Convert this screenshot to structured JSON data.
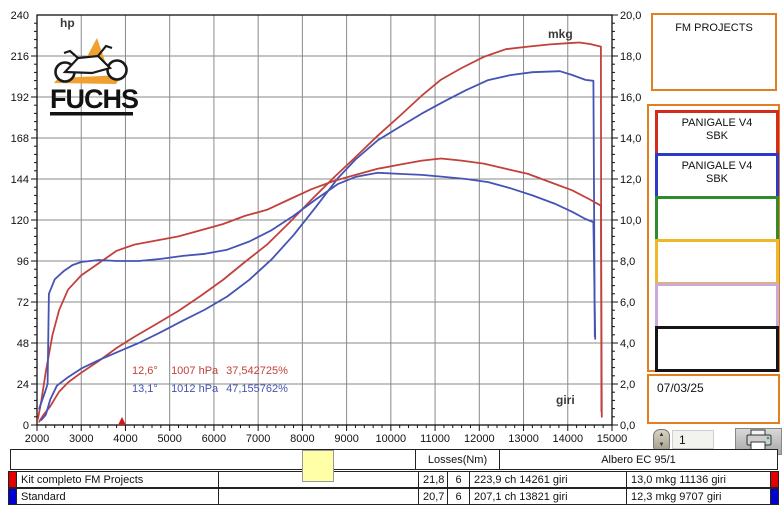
{
  "branding": {
    "logo_text": "FUCHS"
  },
  "colors": {
    "accent_orange": "#e08020",
    "logo_orange": "#f0a030",
    "curve_red": "#c2413c",
    "curve_blue": "#4553b4"
  },
  "chart": {
    "hp_label": "hp",
    "mkg_label": "mkg",
    "giri_label": "giri",
    "annotations": [
      {
        "temp": "12,6°",
        "pressure": "1007 hPa",
        "humidity": "37,542725%"
      },
      {
        "temp": "13,1°",
        "pressure": "1012 hPa",
        "humidity": "47,155762%"
      }
    ]
  },
  "chart_data": {
    "type": "line",
    "title": "",
    "xlabel": "giri",
    "ylabel_left": "hp",
    "ylabel_right": "mkg",
    "x_range": [
      2000,
      15000
    ],
    "y_left_range": [
      0,
      240
    ],
    "y_right_range": [
      0,
      20
    ],
    "grid": true,
    "x_tick_values": [
      2000,
      3000,
      4000,
      5000,
      6000,
      7000,
      8000,
      9000,
      10000,
      11000,
      12000,
      13000,
      14000,
      15000
    ],
    "x_tick_labels": [
      "2000",
      "3000",
      "4000",
      "5000",
      "6000",
      "7000",
      "8000",
      "9000",
      "10000",
      "11000",
      "12000",
      "13000",
      "14000",
      "15000"
    ],
    "y_left_tick_values": [
      0,
      24,
      48,
      72,
      96,
      120,
      144,
      168,
      192,
      216,
      240
    ],
    "y_left_tick_labels": [
      "0",
      "24",
      "48",
      "72",
      "96",
      "120",
      "144",
      "168",
      "192",
      "216",
      "240"
    ],
    "y_right_tick_values": [
      0,
      2,
      4,
      6,
      8,
      10,
      12,
      14,
      16,
      18,
      20
    ],
    "y_right_tick_labels": [
      "0,0",
      "2,0",
      "4,0",
      "6,0",
      "8,0",
      "10,0",
      "12,0",
      "14,0",
      "16,0",
      "18,0",
      "20,0"
    ],
    "series": [
      {
        "name": "Kit completo FM Projects - potenza (ch)",
        "axis": "left",
        "color": "#c2413c",
        "peak": "223,9 ch 14261 giri",
        "points": [
          [
            2050,
            2
          ],
          [
            2150,
            6
          ],
          [
            2300,
            11
          ],
          [
            2500,
            19.5
          ],
          [
            2700,
            24.9
          ],
          [
            3000,
            30.6
          ],
          [
            3400,
            37.5
          ],
          [
            3800,
            45.1
          ],
          [
            4200,
            51.6
          ],
          [
            4700,
            59.1
          ],
          [
            5200,
            66.8
          ],
          [
            5700,
            75.6
          ],
          [
            6200,
            84.9
          ],
          [
            6700,
            95.4
          ],
          [
            7200,
            105.6
          ],
          [
            7700,
            118.3
          ],
          [
            8200,
            131.7
          ],
          [
            8700,
            144.6
          ],
          [
            9200,
            156.8
          ],
          [
            9700,
            169.3
          ],
          [
            10200,
            180.9
          ],
          [
            10700,
            192.8
          ],
          [
            11136,
            202.2
          ],
          [
            11600,
            209
          ],
          [
            12100,
            215.5
          ],
          [
            12600,
            220
          ],
          [
            13100,
            221.5
          ],
          [
            13600,
            222.8
          ],
          [
            14000,
            223.5
          ],
          [
            14261,
            223.9
          ],
          [
            14500,
            223
          ],
          [
            14750,
            221.5
          ],
          [
            14760,
            8
          ]
        ]
      },
      {
        "name": "Standard - potenza (ch)",
        "axis": "left",
        "color": "#4553b4",
        "peak": "207,1 ch 13821 giri",
        "points": [
          [
            2100,
            3
          ],
          [
            2200,
            6
          ],
          [
            2300,
            15
          ],
          [
            2450,
            23
          ],
          [
            2700,
            28
          ],
          [
            3000,
            33
          ],
          [
            3400,
            38
          ],
          [
            3800,
            42.5
          ],
          [
            4300,
            48
          ],
          [
            4800,
            54.3
          ],
          [
            5300,
            61.1
          ],
          [
            5800,
            67.6
          ],
          [
            6300,
            75.2
          ],
          [
            6800,
            85
          ],
          [
            7300,
            96.8
          ],
          [
            7800,
            111.1
          ],
          [
            8300,
            127.5
          ],
          [
            8800,
            144.4
          ],
          [
            9200,
            155.4
          ],
          [
            9700,
            166.6
          ],
          [
            10200,
            174.5
          ],
          [
            10700,
            182.3
          ],
          [
            11200,
            189.3
          ],
          [
            11700,
            196
          ],
          [
            12200,
            201.9
          ],
          [
            12700,
            204.8
          ],
          [
            13200,
            206.5
          ],
          [
            13821,
            207.1
          ],
          [
            14100,
            204.9
          ],
          [
            14400,
            202
          ],
          [
            14580,
            201.5
          ],
          [
            14610,
            52
          ]
        ]
      },
      {
        "name": "Kit completo FM Projects - coppia (mkg)",
        "axis": "right",
        "color": "#c2413c",
        "peak": "13,0 mkg 11136 giri",
        "points": [
          [
            2020,
            0.3
          ],
          [
            2100,
            1.2
          ],
          [
            2200,
            2.6
          ],
          [
            2350,
            4.4
          ],
          [
            2500,
            5.6
          ],
          [
            2700,
            6.6
          ],
          [
            3000,
            7.3
          ],
          [
            3400,
            7.9
          ],
          [
            3800,
            8.5
          ],
          [
            4200,
            8.8
          ],
          [
            4700,
            9.0
          ],
          [
            5200,
            9.2
          ],
          [
            5700,
            9.5
          ],
          [
            6200,
            9.8
          ],
          [
            6700,
            10.2
          ],
          [
            7200,
            10.5
          ],
          [
            7700,
            11.0
          ],
          [
            8200,
            11.5
          ],
          [
            8700,
            11.9
          ],
          [
            9200,
            12.2
          ],
          [
            9700,
            12.5
          ],
          [
            10200,
            12.7
          ],
          [
            10700,
            12.9
          ],
          [
            11136,
            13.0
          ],
          [
            11600,
            12.9
          ],
          [
            12100,
            12.75
          ],
          [
            12600,
            12.5
          ],
          [
            13100,
            12.25
          ],
          [
            13600,
            11.85
          ],
          [
            14100,
            11.45
          ],
          [
            14500,
            11.0
          ],
          [
            14750,
            10.7
          ],
          [
            14770,
            0.4
          ]
        ]
      },
      {
        "name": "Standard - coppia (mkg)",
        "axis": "right",
        "color": "#4553b4",
        "peak": "12,3 mkg 9707 giri",
        "points": [
          [
            2050,
            0.8
          ],
          [
            2180,
            1.6
          ],
          [
            2240,
            2.0
          ],
          [
            2270,
            6.4
          ],
          [
            2400,
            7.1
          ],
          [
            2600,
            7.5
          ],
          [
            2800,
            7.8
          ],
          [
            3000,
            7.95
          ],
          [
            3400,
            8.05
          ],
          [
            3800,
            8.0
          ],
          [
            4300,
            8.0
          ],
          [
            4800,
            8.1
          ],
          [
            5300,
            8.25
          ],
          [
            5800,
            8.35
          ],
          [
            6300,
            8.55
          ],
          [
            6800,
            8.95
          ],
          [
            7300,
            9.5
          ],
          [
            7800,
            10.2
          ],
          [
            8300,
            11.0
          ],
          [
            8800,
            11.75
          ],
          [
            9200,
            12.1
          ],
          [
            9707,
            12.3
          ],
          [
            10200,
            12.25
          ],
          [
            10700,
            12.2
          ],
          [
            11200,
            12.1
          ],
          [
            11700,
            12.0
          ],
          [
            12200,
            11.85
          ],
          [
            12700,
            11.55
          ],
          [
            13200,
            11.2
          ],
          [
            13700,
            10.8
          ],
          [
            14100,
            10.4
          ],
          [
            14400,
            10.05
          ],
          [
            14580,
            9.9
          ],
          [
            14620,
            4.2
          ]
        ]
      }
    ]
  },
  "sidebar": {
    "project_box": "FM PROJECTS",
    "slots": [
      {
        "border": "#d52b1e",
        "line1": "PANIGALE V4",
        "line2": "SBK"
      },
      {
        "border": "#2b3bc8",
        "line1": "PANIGALE V4",
        "line2": "SBK"
      },
      {
        "border": "#2e8b2e",
        "line1": "",
        "line2": ""
      },
      {
        "border": "#edb829",
        "line1": "",
        "line2": ""
      },
      {
        "border": "#c9a8e0",
        "line1": "",
        "line2": ""
      },
      {
        "border": "#151515",
        "line1": "",
        "line2": ""
      }
    ],
    "date": "07/03/25",
    "page_number": "1"
  },
  "table": {
    "header": {
      "losses": "Losses(Nm)",
      "shaft": "Albero EC 95/1"
    },
    "rows": [
      {
        "marker_color": "#e00000",
        "name": "Kit completo FM Projects",
        "loss1": "21,8",
        "loss2": "6",
        "power": "223,9 ch 14261 giri",
        "torque": "13,0 mkg 11136 giri"
      },
      {
        "marker_color": "#0000d0",
        "name": "Standard",
        "loss1": "20,7",
        "loss2": "6",
        "power": "207,1 ch 13821 giri",
        "torque": "12,3 mkg 9707 giri"
      }
    ]
  }
}
